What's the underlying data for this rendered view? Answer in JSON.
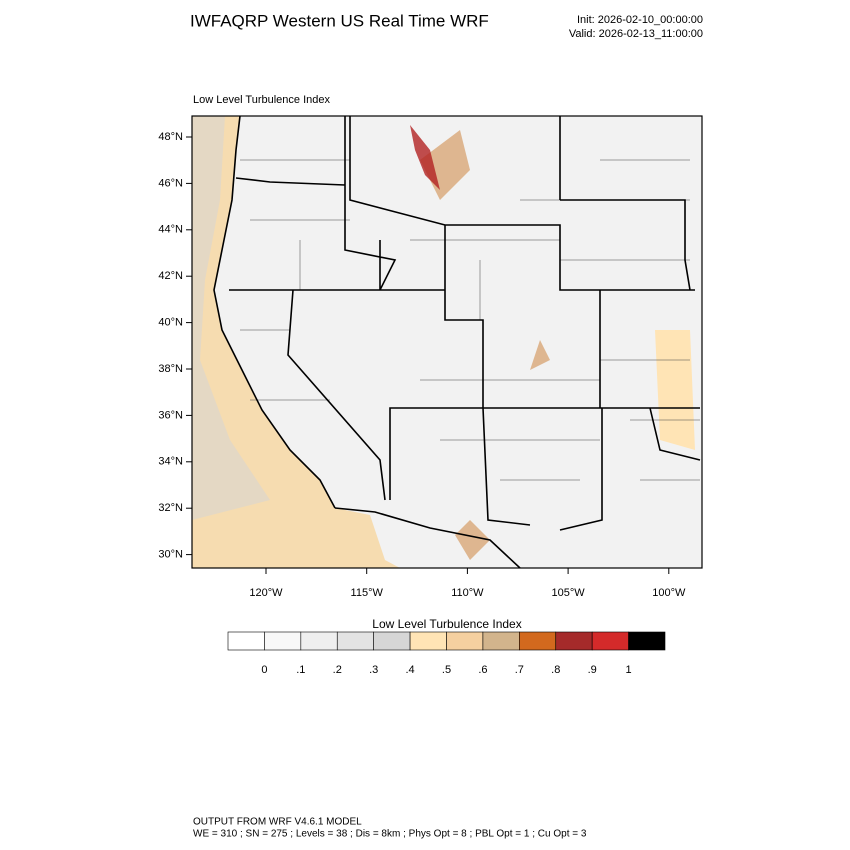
{
  "header": {
    "title": "IWFAQRP Western US Real Time WRF",
    "init": "Init: 2026-02-10_00:00:00",
    "valid": "Valid: 2026-02-13_11:00:00"
  },
  "map": {
    "subtitle": "Low Level Turbulence Index",
    "lat_labels": [
      "48°N",
      "46°N",
      "44°N",
      "42°N",
      "40°N",
      "38°N",
      "36°N",
      "34°N",
      "32°N",
      "30°N"
    ],
    "lon_labels": [
      "120°W",
      "115°W",
      "110°W",
      "105°W",
      "100°W"
    ]
  },
  "colorbar": {
    "title": "Low Level Turbulence Index",
    "colors": [
      "#ffffff",
      "#f8f8f8",
      "#efefef",
      "#e3e3e3",
      "#d6d6d6",
      "#ffe4b5",
      "#f5d0a0",
      "#d2b48c",
      "#d2691e",
      "#a52a2a",
      "#d42a2a",
      "#000000"
    ],
    "labels": [
      "0",
      ".1",
      ".2",
      ".3",
      ".4",
      ".5",
      ".6",
      ".7",
      ".8",
      ".9",
      "1"
    ]
  },
  "footer": {
    "line1": "OUTPUT FROM WRF V4.6.1 MODEL",
    "line2": "WE = 310 ; SN = 275 ; Levels = 38 ; Dis = 8km ; Phys Opt = 8 ; PBL Opt = 1 ; Cu Opt = 3"
  }
}
